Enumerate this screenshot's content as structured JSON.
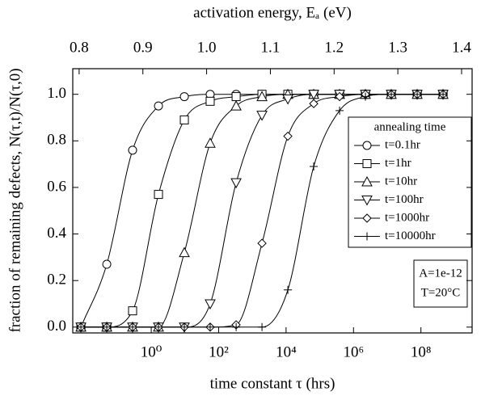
{
  "chart_data": {
    "type": "line",
    "xlabel": "time constant  τ (hrs)",
    "ylabel": "fraction of remaining defects, N(τ,t)/N(τ,0)",
    "x2label": "activation energy, Eₐ (eV)",
    "xscale": "log",
    "x": [
      0.0082,
      0.048,
      0.28,
      1.64,
      9.6,
      56,
      330,
      1930,
      11300,
      66100,
      387000,
      2260000,
      13200000,
      77600000,
      454000000
    ],
    "xlim": [
      0.0047,
      3300000000
    ],
    "xticks": [
      {
        "value": 1,
        "label": "10⁰"
      },
      {
        "value": 100,
        "label": "10²"
      },
      {
        "value": 10000,
        "label": "10⁴"
      },
      {
        "value": 1000000,
        "label": "10⁶"
      },
      {
        "value": 100000000,
        "label": "10⁸"
      }
    ],
    "x2lim": [
      0.79,
      1.4165
    ],
    "x2ticks": [
      0.8,
      0.9,
      {
        "value": 1,
        "label": "1.0"
      },
      1.1,
      1.2,
      1.3,
      1.4
    ],
    "ylim": [
      -0.025,
      1.11
    ],
    "yticks": [
      {
        "value": 0,
        "label": "0.0"
      },
      0.2,
      0.4,
      0.6,
      0.8,
      {
        "value": 1,
        "label": "1.0"
      }
    ],
    "legend_title": "annealing time",
    "legend_position": "right",
    "annotations": [
      "A=1e-12",
      "T=20°C"
    ],
    "series": [
      {
        "name": "t=0.1hr",
        "marker": "circle",
        "color": "#000000",
        "values": [
          0,
          0.27,
          0.76,
          0.95,
          0.99,
          1,
          1,
          1,
          1,
          1,
          1,
          1,
          1,
          1,
          1
        ]
      },
      {
        "name": "t=1hr",
        "marker": "square",
        "color": "#000000",
        "values": [
          0,
          0,
          0.07,
          0.57,
          0.89,
          0.97,
          0.99,
          1,
          1,
          1,
          1,
          1,
          1,
          1,
          1
        ]
      },
      {
        "name": "t=10hr",
        "marker": "triangle-up",
        "color": "#000000",
        "values": [
          0,
          0,
          0,
          0,
          0.32,
          0.79,
          0.95,
          0.99,
          1,
          1,
          1,
          1,
          1,
          1,
          1
        ]
      },
      {
        "name": "t=100hr",
        "marker": "triangle-down",
        "color": "#000000",
        "values": [
          0,
          0,
          0,
          0,
          0,
          0.1,
          0.62,
          0.91,
          0.98,
          1,
          1,
          1,
          1,
          1,
          1
        ]
      },
      {
        "name": "t=1000hr",
        "marker": "diamond",
        "color": "#000000",
        "values": [
          0,
          0,
          0,
          0,
          0,
          0,
          0.01,
          0.36,
          0.82,
          0.96,
          0.99,
          1,
          1,
          1,
          1
        ]
      },
      {
        "name": "t=10000hr",
        "marker": "plus",
        "color": "#000000",
        "values": [
          0,
          0,
          0,
          0,
          0,
          0,
          0,
          0,
          0.16,
          0.69,
          0.93,
          0.99,
          1,
          1,
          1
        ]
      }
    ]
  }
}
